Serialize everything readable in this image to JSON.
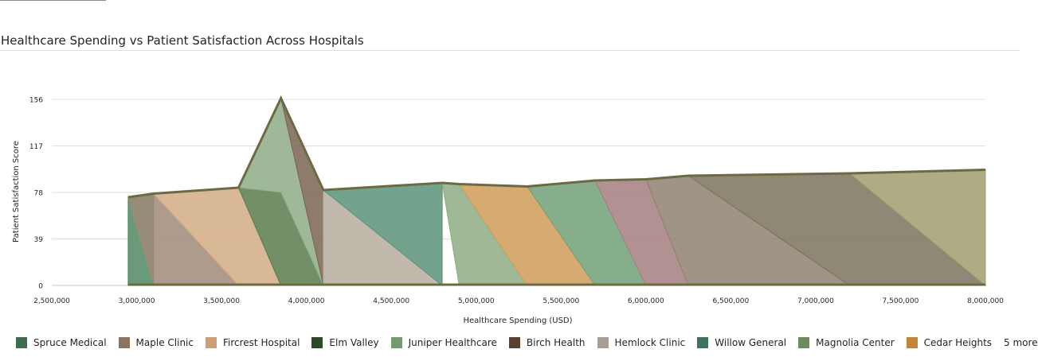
{
  "title": "Healthcare Spending vs Patient Satisfaction Across Hospitals",
  "chart_data": {
    "type": "area",
    "xlabel": "Healthcare Spending (USD)",
    "ylabel": "Patient Satisfaction Score",
    "xlim": [
      2500000,
      8000000
    ],
    "ylim": [
      0,
      156
    ],
    "xticks": [
      2500000,
      3000000,
      3500000,
      4000000,
      4500000,
      5000000,
      5500000,
      6000000,
      6500000,
      7000000,
      7500000,
      8000000
    ],
    "xtick_labels": [
      "2,500,000",
      "3,000,000",
      "3,500,000",
      "4,000,000",
      "4,500,000",
      "5,000,000",
      "5,500,000",
      "6,000,000",
      "6,500,000",
      "7,000,000",
      "7,500,000",
      "8,000,000"
    ],
    "yticks": [
      0,
      39,
      78,
      117,
      156
    ],
    "ytick_labels": [
      "0",
      "39",
      "78",
      "117",
      "156"
    ],
    "grid": true,
    "points": [
      {
        "x": 2950000,
        "y": 74
      },
      {
        "x": 3100000,
        "y": 77
      },
      {
        "x": 3600000,
        "y": 82
      },
      {
        "x": 3850000,
        "y": 157
      },
      {
        "x": 4100000,
        "y": 80
      },
      {
        "x": 4800000,
        "y": 86
      },
      {
        "x": 4900000,
        "y": 85
      },
      {
        "x": 5300000,
        "y": 83
      },
      {
        "x": 5700000,
        "y": 88
      },
      {
        "x": 6000000,
        "y": 89
      },
      {
        "x": 6250000,
        "y": 92
      },
      {
        "x": 7200000,
        "y": 94
      },
      {
        "x": 8000000,
        "y": 97
      }
    ],
    "polygons": [
      {
        "color": "#4f8a63",
        "pts": [
          [
            2950000,
            74
          ],
          [
            3100000,
            77
          ],
          [
            3100000,
            0
          ],
          [
            2950000,
            0
          ]
        ]
      },
      {
        "color": "#a08a78",
        "pts": [
          [
            2950000,
            74
          ],
          [
            3100000,
            77
          ],
          [
            3600000,
            0
          ],
          [
            3100000,
            0
          ]
        ]
      },
      {
        "color": "#d2ac83",
        "pts": [
          [
            3100000,
            77
          ],
          [
            3600000,
            82
          ],
          [
            3850000,
            0
          ],
          [
            3600000,
            0
          ]
        ]
      },
      {
        "color": "#5a7b4d",
        "pts": [
          [
            3600000,
            82
          ],
          [
            3850000,
            78
          ],
          [
            4100000,
            0
          ],
          [
            3850000,
            0
          ]
        ]
      },
      {
        "color": "#8ead86",
        "pts": [
          [
            3600000,
            82
          ],
          [
            3850000,
            157
          ],
          [
            4100000,
            0
          ],
          [
            3850000,
            78
          ]
        ]
      },
      {
        "color": "#7a6450",
        "pts": [
          [
            3850000,
            157
          ],
          [
            4100000,
            80
          ],
          [
            4100000,
            0
          ]
        ]
      },
      {
        "color": "#b7ad9f",
        "pts": [
          [
            4100000,
            80
          ],
          [
            4800000,
            0
          ],
          [
            4100000,
            0
          ]
        ]
      },
      {
        "color": "#5a9279",
        "pts": [
          [
            4100000,
            80
          ],
          [
            4800000,
            86
          ],
          [
            4800000,
            0
          ]
        ]
      },
      {
        "color": "#8eab83",
        "pts": [
          [
            4800000,
            86
          ],
          [
            4900000,
            85
          ],
          [
            5300000,
            0
          ],
          [
            4900000,
            0
          ]
        ]
      },
      {
        "color": "#cf9c58",
        "pts": [
          [
            4900000,
            85
          ],
          [
            5300000,
            83
          ],
          [
            5700000,
            0
          ],
          [
            5300000,
            0
          ]
        ]
      },
      {
        "color": "#72a077",
        "pts": [
          [
            5300000,
            83
          ],
          [
            5700000,
            88
          ],
          [
            6000000,
            0
          ],
          [
            5700000,
            0
          ]
        ]
      },
      {
        "color": "#a47e80",
        "pts": [
          [
            5700000,
            88
          ],
          [
            6000000,
            89
          ],
          [
            6250000,
            0
          ],
          [
            6000000,
            0
          ]
        ]
      },
      {
        "color": "#8f8171",
        "pts": [
          [
            6000000,
            89
          ],
          [
            6250000,
            92
          ],
          [
            7200000,
            0
          ],
          [
            6250000,
            0
          ]
        ]
      },
      {
        "color": "#7a735c",
        "pts": [
          [
            6250000,
            92
          ],
          [
            7200000,
            94
          ],
          [
            8000000,
            0
          ],
          [
            7200000,
            0
          ]
        ]
      },
      {
        "color": "#a09e70",
        "pts": [
          [
            7200000,
            94
          ],
          [
            8000000,
            97
          ],
          [
            8000000,
            0
          ]
        ]
      }
    ]
  },
  "legend": {
    "items": [
      {
        "label": "Spruce Medical",
        "color": "#3e6b4c"
      },
      {
        "label": "Maple Clinic",
        "color": "#8b7560"
      },
      {
        "label": "Fircrest Hospital",
        "color": "#c9a07a"
      },
      {
        "label": "Elm Valley",
        "color": "#2d4a22"
      },
      {
        "label": "Juniper Healthcare",
        "color": "#759a72"
      },
      {
        "label": "Birch Health",
        "color": "#5b4030"
      },
      {
        "label": "Hemlock Clinic",
        "color": "#a89f92"
      },
      {
        "label": "Willow General",
        "color": "#3f7359"
      },
      {
        "label": "Magnolia Center",
        "color": "#6d8a59"
      },
      {
        "label": "Cedar Heights",
        "color": "#c48536"
      }
    ],
    "more_label": "5 more"
  },
  "colors": {
    "outline": "#6b6a45",
    "grid": "#e1dfdd",
    "axis": "#c8c6c4"
  }
}
